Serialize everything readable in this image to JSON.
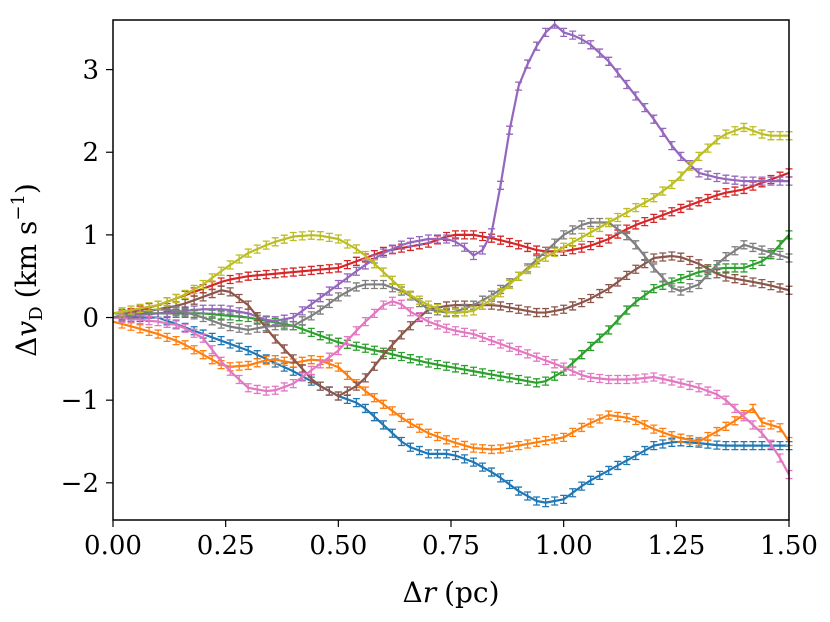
{
  "chart_data": {
    "type": "line",
    "title": "",
    "xlabel": "Δr (pc)",
    "ylabel": "Δv_D (km s⁻¹)",
    "ylabel_parts": {
      "delta": "Δ",
      "v": "v",
      "sub": "D",
      "units_open": "(km s",
      "sup": "−1",
      "units_close": ")"
    },
    "xlabel_parts": {
      "delta": "Δ",
      "r": "r",
      "units": "(pc)"
    },
    "xlim": [
      0.0,
      1.5
    ],
    "ylim": [
      -2.45,
      3.6
    ],
    "xticks": [
      0.0,
      0.25,
      0.5,
      0.75,
      1.0,
      1.25,
      1.5
    ],
    "xtick_labels": [
      "0.00",
      "0.25",
      "0.50",
      "0.75",
      "1.00",
      "1.25",
      "1.50"
    ],
    "yticks": [
      -2,
      -1,
      0,
      1,
      2,
      3
    ],
    "ytick_labels": [
      "−2",
      "−1",
      "0",
      "1",
      "2",
      "3"
    ],
    "grid": false,
    "legend": "none",
    "series": [
      {
        "name": "blue",
        "color": "#1f77b4",
        "points": [
          [
            0,
            0
          ],
          [
            0.1,
            0.0
          ],
          [
            0.15,
            -0.1
          ],
          [
            0.2,
            -0.2
          ],
          [
            0.3,
            -0.4
          ],
          [
            0.4,
            -0.65
          ],
          [
            0.5,
            -0.95
          ],
          [
            0.55,
            -1.05
          ],
          [
            0.6,
            -1.3
          ],
          [
            0.65,
            -1.55
          ],
          [
            0.7,
            -1.65
          ],
          [
            0.75,
            -1.65
          ],
          [
            0.8,
            -1.75
          ],
          [
            0.85,
            -1.9
          ],
          [
            0.9,
            -2.1
          ],
          [
            0.95,
            -2.25
          ],
          [
            1.0,
            -2.2
          ],
          [
            1.05,
            -2.0
          ],
          [
            1.1,
            -1.85
          ],
          [
            1.15,
            -1.7
          ],
          [
            1.2,
            -1.55
          ],
          [
            1.25,
            -1.5
          ],
          [
            1.3,
            -1.52
          ],
          [
            1.35,
            -1.55
          ],
          [
            1.4,
            -1.55
          ],
          [
            1.45,
            -1.55
          ],
          [
            1.5,
            -1.55
          ]
        ]
      },
      {
        "name": "orange",
        "color": "#ff7f0e",
        "points": [
          [
            0,
            -0.05
          ],
          [
            0.05,
            -0.12
          ],
          [
            0.1,
            -0.2
          ],
          [
            0.15,
            -0.3
          ],
          [
            0.2,
            -0.45
          ],
          [
            0.25,
            -0.6
          ],
          [
            0.3,
            -0.58
          ],
          [
            0.35,
            -0.5
          ],
          [
            0.4,
            -0.55
          ],
          [
            0.45,
            -0.5
          ],
          [
            0.5,
            -0.6
          ],
          [
            0.55,
            -0.85
          ],
          [
            0.6,
            -1.05
          ],
          [
            0.65,
            -1.25
          ],
          [
            0.7,
            -1.4
          ],
          [
            0.75,
            -1.5
          ],
          [
            0.8,
            -1.58
          ],
          [
            0.85,
            -1.6
          ],
          [
            0.9,
            -1.55
          ],
          [
            0.95,
            -1.5
          ],
          [
            1.0,
            -1.45
          ],
          [
            1.05,
            -1.3
          ],
          [
            1.1,
            -1.18
          ],
          [
            1.15,
            -1.22
          ],
          [
            1.2,
            -1.35
          ],
          [
            1.25,
            -1.45
          ],
          [
            1.3,
            -1.5
          ],
          [
            1.35,
            -1.35
          ],
          [
            1.38,
            -1.25
          ],
          [
            1.42,
            -1.1
          ],
          [
            1.45,
            -1.35
          ],
          [
            1.47,
            -1.25
          ],
          [
            1.5,
            -1.5
          ]
        ]
      },
      {
        "name": "green",
        "color": "#2ca02c",
        "points": [
          [
            0,
            0.05
          ],
          [
            0.1,
            0.05
          ],
          [
            0.2,
            0.05
          ],
          [
            0.3,
            0.0
          ],
          [
            0.4,
            -0.1
          ],
          [
            0.5,
            -0.3
          ],
          [
            0.6,
            -0.42
          ],
          [
            0.7,
            -0.55
          ],
          [
            0.8,
            -0.65
          ],
          [
            0.9,
            -0.75
          ],
          [
            0.95,
            -0.8
          ],
          [
            1.0,
            -0.65
          ],
          [
            1.05,
            -0.4
          ],
          [
            1.1,
            -0.15
          ],
          [
            1.15,
            0.15
          ],
          [
            1.2,
            0.35
          ],
          [
            1.25,
            0.45
          ],
          [
            1.3,
            0.55
          ],
          [
            1.35,
            0.6
          ],
          [
            1.4,
            0.6
          ],
          [
            1.45,
            0.7
          ],
          [
            1.5,
            1.0
          ]
        ]
      },
      {
        "name": "red",
        "color": "#d62728",
        "points": [
          [
            0,
            0.0
          ],
          [
            0.1,
            0.15
          ],
          [
            0.2,
            0.35
          ],
          [
            0.25,
            0.45
          ],
          [
            0.3,
            0.5
          ],
          [
            0.4,
            0.55
          ],
          [
            0.5,
            0.6
          ],
          [
            0.55,
            0.7
          ],
          [
            0.6,
            0.8
          ],
          [
            0.65,
            0.85
          ],
          [
            0.7,
            0.9
          ],
          [
            0.75,
            1.0
          ],
          [
            0.8,
            1.0
          ],
          [
            0.85,
            0.95
          ],
          [
            0.9,
            0.88
          ],
          [
            0.95,
            0.8
          ],
          [
            1.0,
            0.8
          ],
          [
            1.05,
            0.85
          ],
          [
            1.1,
            0.95
          ],
          [
            1.15,
            1.1
          ],
          [
            1.2,
            1.2
          ],
          [
            1.25,
            1.3
          ],
          [
            1.3,
            1.4
          ],
          [
            1.35,
            1.5
          ],
          [
            1.4,
            1.55
          ],
          [
            1.45,
            1.65
          ],
          [
            1.5,
            1.75
          ]
        ]
      },
      {
        "name": "purple",
        "color": "#9467bd",
        "points": [
          [
            0,
            0.0
          ],
          [
            0.1,
            0.05
          ],
          [
            0.2,
            0.1
          ],
          [
            0.25,
            0.1
          ],
          [
            0.3,
            0.05
          ],
          [
            0.35,
            -0.05
          ],
          [
            0.4,
            0.0
          ],
          [
            0.45,
            0.2
          ],
          [
            0.5,
            0.4
          ],
          [
            0.55,
            0.6
          ],
          [
            0.6,
            0.78
          ],
          [
            0.65,
            0.9
          ],
          [
            0.7,
            0.95
          ],
          [
            0.75,
            0.95
          ],
          [
            0.78,
            0.85
          ],
          [
            0.8,
            0.75
          ],
          [
            0.83,
            0.85
          ],
          [
            0.85,
            1.2
          ],
          [
            0.87,
            2.0
          ],
          [
            0.9,
            2.8
          ],
          [
            0.93,
            3.2
          ],
          [
            0.96,
            3.45
          ],
          [
            0.98,
            3.55
          ],
          [
            1.0,
            3.45
          ],
          [
            1.03,
            3.4
          ],
          [
            1.06,
            3.3
          ],
          [
            1.1,
            3.1
          ],
          [
            1.15,
            2.75
          ],
          [
            1.2,
            2.4
          ],
          [
            1.25,
            2.0
          ],
          [
            1.3,
            1.75
          ],
          [
            1.35,
            1.68
          ],
          [
            1.4,
            1.65
          ],
          [
            1.45,
            1.65
          ],
          [
            1.5,
            1.65
          ]
        ]
      },
      {
        "name": "brown",
        "color": "#8c564b",
        "points": [
          [
            0,
            0.0
          ],
          [
            0.05,
            0.05
          ],
          [
            0.1,
            0.1
          ],
          [
            0.15,
            0.15
          ],
          [
            0.2,
            0.25
          ],
          [
            0.25,
            0.35
          ],
          [
            0.3,
            0.15
          ],
          [
            0.35,
            -0.2
          ],
          [
            0.4,
            -0.5
          ],
          [
            0.45,
            -0.8
          ],
          [
            0.5,
            -0.95
          ],
          [
            0.55,
            -0.8
          ],
          [
            0.6,
            -0.45
          ],
          [
            0.65,
            -0.15
          ],
          [
            0.7,
            0.1
          ],
          [
            0.75,
            0.15
          ],
          [
            0.8,
            0.15
          ],
          [
            0.85,
            0.15
          ],
          [
            0.9,
            0.1
          ],
          [
            0.95,
            0.05
          ],
          [
            1.0,
            0.1
          ],
          [
            1.05,
            0.2
          ],
          [
            1.1,
            0.35
          ],
          [
            1.15,
            0.55
          ],
          [
            1.2,
            0.72
          ],
          [
            1.25,
            0.75
          ],
          [
            1.3,
            0.65
          ],
          [
            1.35,
            0.5
          ],
          [
            1.4,
            0.45
          ],
          [
            1.45,
            0.4
          ],
          [
            1.5,
            0.33
          ]
        ]
      },
      {
        "name": "pink",
        "color": "#e377c2",
        "points": [
          [
            0,
            0.0
          ],
          [
            0.05,
            -0.02
          ],
          [
            0.1,
            -0.05
          ],
          [
            0.15,
            -0.1
          ],
          [
            0.2,
            -0.25
          ],
          [
            0.25,
            -0.6
          ],
          [
            0.3,
            -0.85
          ],
          [
            0.35,
            -0.9
          ],
          [
            0.4,
            -0.8
          ],
          [
            0.45,
            -0.6
          ],
          [
            0.5,
            -0.4
          ],
          [
            0.55,
            -0.1
          ],
          [
            0.6,
            0.15
          ],
          [
            0.63,
            0.22
          ],
          [
            0.65,
            0.1
          ],
          [
            0.7,
            -0.05
          ],
          [
            0.75,
            -0.15
          ],
          [
            0.8,
            -0.2
          ],
          [
            0.85,
            -0.3
          ],
          [
            0.9,
            -0.4
          ],
          [
            0.95,
            -0.5
          ],
          [
            1.0,
            -0.6
          ],
          [
            1.05,
            -0.72
          ],
          [
            1.1,
            -0.75
          ],
          [
            1.15,
            -0.75
          ],
          [
            1.2,
            -0.72
          ],
          [
            1.25,
            -0.78
          ],
          [
            1.3,
            -0.85
          ],
          [
            1.35,
            -0.95
          ],
          [
            1.4,
            -1.2
          ],
          [
            1.45,
            -1.45
          ],
          [
            1.48,
            -1.7
          ],
          [
            1.5,
            -1.9
          ]
        ]
      },
      {
        "name": "gray",
        "color": "#7f7f7f",
        "points": [
          [
            0,
            0.0
          ],
          [
            0.05,
            0.05
          ],
          [
            0.1,
            0.1
          ],
          [
            0.15,
            0.08
          ],
          [
            0.2,
            0.0
          ],
          [
            0.25,
            -0.1
          ],
          [
            0.3,
            -0.15
          ],
          [
            0.35,
            -0.1
          ],
          [
            0.4,
            -0.1
          ],
          [
            0.45,
            0.05
          ],
          [
            0.5,
            0.25
          ],
          [
            0.55,
            0.4
          ],
          [
            0.6,
            0.4
          ],
          [
            0.65,
            0.3
          ],
          [
            0.7,
            0.1
          ],
          [
            0.75,
            0.05
          ],
          [
            0.8,
            0.15
          ],
          [
            0.85,
            0.3
          ],
          [
            0.9,
            0.5
          ],
          [
            0.95,
            0.75
          ],
          [
            1.0,
            1.0
          ],
          [
            1.05,
            1.15
          ],
          [
            1.1,
            1.15
          ],
          [
            1.15,
            0.95
          ],
          [
            1.2,
            0.6
          ],
          [
            1.25,
            0.3
          ],
          [
            1.3,
            0.4
          ],
          [
            1.35,
            0.7
          ],
          [
            1.4,
            0.88
          ],
          [
            1.45,
            0.8
          ],
          [
            1.5,
            0.72
          ]
        ]
      },
      {
        "name": "olive",
        "color": "#bcbd22",
        "points": [
          [
            0,
            0.05
          ],
          [
            0.05,
            0.1
          ],
          [
            0.1,
            0.15
          ],
          [
            0.15,
            0.25
          ],
          [
            0.2,
            0.4
          ],
          [
            0.25,
            0.6
          ],
          [
            0.3,
            0.78
          ],
          [
            0.35,
            0.9
          ],
          [
            0.4,
            0.98
          ],
          [
            0.45,
            1.0
          ],
          [
            0.5,
            0.95
          ],
          [
            0.55,
            0.8
          ],
          [
            0.6,
            0.55
          ],
          [
            0.65,
            0.3
          ],
          [
            0.7,
            0.15
          ],
          [
            0.75,
            0.05
          ],
          [
            0.8,
            0.08
          ],
          [
            0.85,
            0.25
          ],
          [
            0.9,
            0.5
          ],
          [
            0.95,
            0.7
          ],
          [
            1.0,
            0.85
          ],
          [
            1.05,
            1.0
          ],
          [
            1.1,
            1.15
          ],
          [
            1.15,
            1.3
          ],
          [
            1.2,
            1.45
          ],
          [
            1.25,
            1.65
          ],
          [
            1.3,
            1.95
          ],
          [
            1.35,
            2.2
          ],
          [
            1.4,
            2.3
          ],
          [
            1.45,
            2.2
          ],
          [
            1.48,
            2.2
          ],
          [
            1.5,
            2.2
          ]
        ]
      }
    ]
  }
}
